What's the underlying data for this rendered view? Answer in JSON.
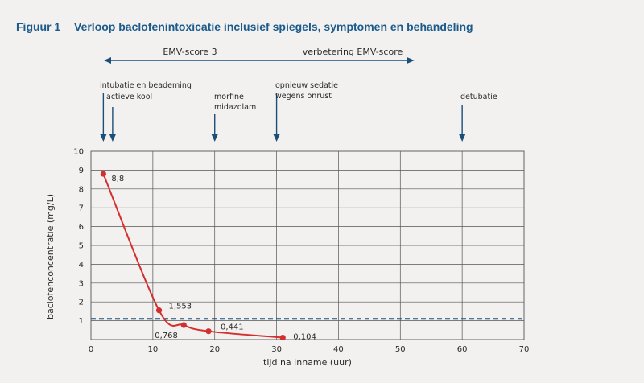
{
  "figure": {
    "number": "Figuur 1",
    "title": "Verloop baclofenintoxicatie inclusief spiegels, symptomen en behandeling"
  },
  "top_band": {
    "left_label": "EMV-score 3",
    "right_label": "verbetering EMV-score",
    "x_start": 0,
    "x_end": 52
  },
  "events": [
    {
      "x": 2,
      "lines": [
        "intubatie en beademing"
      ]
    },
    {
      "x": 3.5,
      "lines": [
        "actieve kool"
      ]
    },
    {
      "x": 20,
      "lines": [
        "morfine",
        "midazolam"
      ]
    },
    {
      "x": 30,
      "lines": [
        "opnieuw sedatie",
        "wegens onrust"
      ]
    },
    {
      "x": 60,
      "lines": [
        "detubatie"
      ]
    }
  ],
  "chart_data": {
    "type": "line",
    "xlabel": "tijd na inname (uur)",
    "ylabel": "baclofenconcentratie (mg/L)",
    "xlim": [
      0,
      70
    ],
    "ylim": [
      0,
      10
    ],
    "x_ticks": [
      "0",
      "10",
      "20",
      "30",
      "40",
      "50",
      "60",
      "70"
    ],
    "y_ticks": [
      "1",
      "2",
      "3",
      "4",
      "5",
      "6",
      "7",
      "8",
      "9",
      "10"
    ],
    "grid": true,
    "series": [
      {
        "x": [
          2,
          11,
          15,
          19,
          31
        ],
        "y": [
          8.8,
          1.553,
          0.768,
          0.441,
          0.104
        ],
        "labels": [
          "8,8",
          "1,553",
          "0,768",
          "0,441",
          "0,104"
        ]
      }
    ],
    "reference_line": {
      "y": 1.1,
      "style": "dashed"
    },
    "colors": {
      "series": "#d32f2f",
      "reference": "#1a4f7a",
      "arrows": "#1a4f7a",
      "grid": "#555555"
    }
  }
}
